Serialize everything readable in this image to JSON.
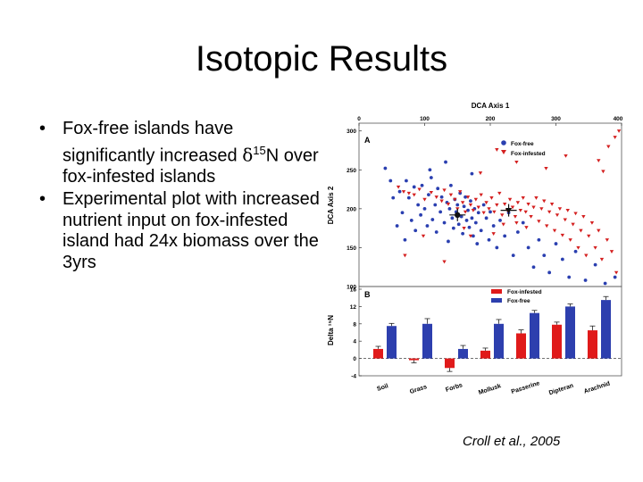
{
  "slide": {
    "title": "Isotopic Results",
    "bullet_char": "•",
    "bullets": [
      {
        "pre": "Fox-free islands have significantly increased ",
        "symbol": "δ",
        "sup": "15",
        "post": "N over fox-infested islands"
      },
      {
        "text": "Experimental plot with increased nutrient input on fox-infested island had 24x biomass over the 3yrs"
      }
    ],
    "citation": "Croll et al., 2005"
  },
  "chart_data": [
    {
      "type": "scatter",
      "panel_label": "A",
      "xlabel": "DCA Axis 1",
      "ylabel": "DCA Axis 2",
      "xlim": [
        0,
        400
      ],
      "ylim": [
        100,
        310
      ],
      "xticks": [
        0,
        100,
        200,
        300,
        400
      ],
      "yticks": [
        100,
        150,
        200,
        250,
        300
      ],
      "legend_position": "top-right",
      "colors": {
        "Fox-free": "#2a3fb0",
        "Fox-infested": "#d42020"
      },
      "series": [
        {
          "name": "Fox-free",
          "marker": "circle",
          "centroid": [
            150,
            192
          ],
          "points": [
            [
              40,
              252
            ],
            [
              48,
              236
            ],
            [
              52,
              214
            ],
            [
              58,
              178
            ],
            [
              62,
              222
            ],
            [
              66,
              195
            ],
            [
              70,
              160
            ],
            [
              72,
              236
            ],
            [
              76,
              214
            ],
            [
              80,
              185
            ],
            [
              84,
              228
            ],
            [
              86,
              172
            ],
            [
              90,
              205
            ],
            [
              94,
              192
            ],
            [
              96,
              230
            ],
            [
              100,
              200
            ],
            [
              104,
              178
            ],
            [
              106,
              218
            ],
            [
              110,
              240
            ],
            [
              112,
              186
            ],
            [
              116,
              205
            ],
            [
              118,
              170
            ],
            [
              120,
              226
            ],
            [
              124,
              196
            ],
            [
              126,
              215
            ],
            [
              130,
              182
            ],
            [
              132,
              260
            ],
            [
              134,
              208
            ],
            [
              136,
              158
            ],
            [
              138,
              200
            ],
            [
              140,
              230
            ],
            [
              142,
              188
            ],
            [
              144,
              175
            ],
            [
              146,
              212
            ],
            [
              148,
              196
            ],
            [
              150,
              205
            ],
            [
              152,
              180
            ],
            [
              154,
              220
            ],
            [
              156,
              190
            ],
            [
              158,
              168
            ],
            [
              160,
              203
            ],
            [
              162,
              215
            ],
            [
              164,
              185
            ],
            [
              166,
              198
            ],
            [
              168,
              176
            ],
            [
              170,
              210
            ],
            [
              172,
              188
            ],
            [
              174,
              165
            ],
            [
              176,
              200
            ],
            [
              178,
              182
            ],
            [
              180,
              155
            ],
            [
              182,
              195
            ],
            [
              186,
              172
            ],
            [
              190,
              205
            ],
            [
              194,
              188
            ],
            [
              198,
              160
            ],
            [
              200,
              196
            ],
            [
              205,
              178
            ],
            [
              210,
              150
            ],
            [
              215,
              185
            ],
            [
              222,
              165
            ],
            [
              228,
              195
            ],
            [
              235,
              140
            ],
            [
              242,
              170
            ],
            [
              250,
              182
            ],
            [
              258,
              150
            ],
            [
              266,
              125
            ],
            [
              274,
              160
            ],
            [
              282,
              140
            ],
            [
              290,
              118
            ],
            [
              300,
              155
            ],
            [
              310,
              135
            ],
            [
              320,
              112
            ],
            [
              330,
              145
            ],
            [
              345,
              108
            ],
            [
              360,
              128
            ],
            [
              375,
              104
            ],
            [
              390,
              112
            ],
            [
              172,
              245
            ],
            [
              108,
              250
            ]
          ]
        },
        {
          "name": "Fox-infested",
          "marker": "triangle-down",
          "centroid": [
            228,
            198
          ],
          "points": [
            [
              60,
              228
            ],
            [
              68,
              222
            ],
            [
              76,
              220
            ],
            [
              84,
              218
            ],
            [
              92,
              225
            ],
            [
              100,
              212
            ],
            [
              110,
              221
            ],
            [
              118,
              215
            ],
            [
              126,
              210
            ],
            [
              130,
              224
            ],
            [
              136,
              206
            ],
            [
              140,
              218
            ],
            [
              146,
              212
            ],
            [
              150,
              200
            ],
            [
              154,
              222
            ],
            [
              158,
              208
            ],
            [
              162,
              196
            ],
            [
              166,
              215
            ],
            [
              170,
              205
            ],
            [
              174,
              198
            ],
            [
              178,
              212
            ],
            [
              182,
              202
            ],
            [
              186,
              218
            ],
            [
              190,
              195
            ],
            [
              194,
              208
            ],
            [
              198,
              200
            ],
            [
              202,
              214
            ],
            [
              206,
              196
            ],
            [
              210,
              205
            ],
            [
              214,
              220
            ],
            [
              218,
              192
            ],
            [
              222,
              206
            ],
            [
              226,
              198
            ],
            [
              230,
              212
            ],
            [
              234,
              202
            ],
            [
              238,
              190
            ],
            [
              242,
              208
            ],
            [
              246,
              198
            ],
            [
              250,
              214
            ],
            [
              254,
              196
            ],
            [
              258,
              206
            ],
            [
              262,
              190
            ],
            [
              266,
              202
            ],
            [
              270,
              214
            ],
            [
              274,
              184
            ],
            [
              278,
              200
            ],
            [
              282,
              210
            ],
            [
              286,
              178
            ],
            [
              290,
              196
            ],
            [
              294,
              206
            ],
            [
              298,
              172
            ],
            [
              302,
              192
            ],
            [
              306,
              200
            ],
            [
              310,
              166
            ],
            [
              314,
              186
            ],
            [
              318,
              198
            ],
            [
              322,
              160
            ],
            [
              326,
              180
            ],
            [
              330,
              194
            ],
            [
              334,
              150
            ],
            [
              338,
              172
            ],
            [
              342,
              190
            ],
            [
              346,
              140
            ],
            [
              350,
              165
            ],
            [
              355,
              182
            ],
            [
              360,
              150
            ],
            [
              365,
              172
            ],
            [
              370,
              135
            ],
            [
              378,
              160
            ],
            [
              385,
              145
            ],
            [
              392,
              118
            ],
            [
              185,
              246
            ],
            [
              210,
              276
            ],
            [
              240,
              260
            ],
            [
              285,
              252
            ],
            [
              315,
              268
            ],
            [
              365,
              262
            ],
            [
              390,
              292
            ],
            [
              396,
              300
            ],
            [
              380,
              280
            ],
            [
              372,
              248
            ],
            [
              240,
              182
            ],
            [
              255,
              176
            ],
            [
              220,
              180
            ],
            [
              70,
              140
            ],
            [
              98,
              165
            ],
            [
              130,
              132
            ],
            [
              170,
              165
            ],
            [
              205,
              168
            ],
            [
              160,
              175
            ]
          ]
        }
      ]
    },
    {
      "type": "bar",
      "panel_label": "B",
      "ylabel": "Delta ¹⁵N",
      "ylim": [
        -4,
        16
      ],
      "yticks": [
        -4,
        0,
        4,
        8,
        12,
        16
      ],
      "legend_position": "top-right",
      "categories": [
        "Soil",
        "Grass",
        "Forbs",
        "Mollusk",
        "Passerine",
        "Dipteran",
        "Arachnid"
      ],
      "series": [
        {
          "name": "Fox-infested",
          "color": "#e01a1a",
          "values": [
            2.2,
            -0.4,
            -2.2,
            1.8,
            5.8,
            7.8,
            6.5
          ],
          "errors": [
            0.6,
            0.6,
            0.8,
            0.6,
            0.8,
            0.6,
            1.0
          ]
        },
        {
          "name": "Fox-free",
          "color": "#2d3fae",
          "values": [
            7.5,
            8.0,
            2.2,
            8.0,
            10.5,
            12.0,
            13.5
          ],
          "errors": [
            0.6,
            1.2,
            0.8,
            1.0,
            0.6,
            0.6,
            0.8
          ]
        }
      ]
    }
  ]
}
